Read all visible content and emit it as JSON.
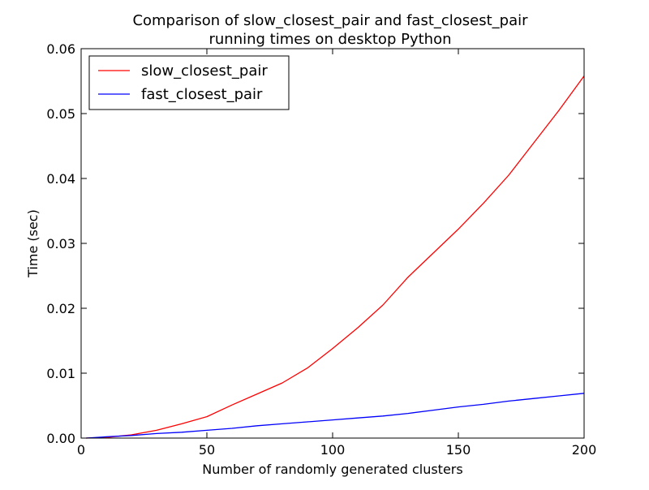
{
  "chart_data": {
    "type": "line",
    "title": "Comparison of slow_closest_pair and fast_closest_pair",
    "subtitle": "running times on desktop Python",
    "xlabel": "Number of randomly generated clusters",
    "ylabel": "Time (sec)",
    "xlim": [
      0,
      200
    ],
    "ylim": [
      0.0,
      0.06
    ],
    "x_ticks": [
      "0",
      "50",
      "100",
      "150",
      "200"
    ],
    "y_ticks": [
      "0.00",
      "0.01",
      "0.02",
      "0.03",
      "0.04",
      "0.05",
      "0.06"
    ],
    "grid": false,
    "legend_position": "upper-left",
    "x": [
      2,
      10,
      20,
      30,
      40,
      50,
      60,
      70,
      80,
      90,
      100,
      110,
      120,
      130,
      140,
      150,
      160,
      170,
      180,
      190,
      200
    ],
    "series": [
      {
        "name": "slow_closest_pair",
        "color": "#ff0000",
        "values": [
          0.0,
          0.0001,
          0.0005,
          0.0012,
          0.0022,
          0.0033,
          0.0051,
          0.0068,
          0.0085,
          0.0108,
          0.0138,
          0.017,
          0.0205,
          0.0248,
          0.0285,
          0.0322,
          0.0362,
          0.0405,
          0.0455,
          0.0505,
          0.0558
        ]
      },
      {
        "name": "fast_closest_pair",
        "color": "#0000ff",
        "values": [
          0.0,
          0.0002,
          0.0004,
          0.0007,
          0.0009,
          0.0012,
          0.0015,
          0.0019,
          0.0022,
          0.0025,
          0.0028,
          0.0031,
          0.0034,
          0.0038,
          0.0043,
          0.0048,
          0.0052,
          0.0057,
          0.0061,
          0.0065,
          0.0069
        ]
      }
    ]
  }
}
